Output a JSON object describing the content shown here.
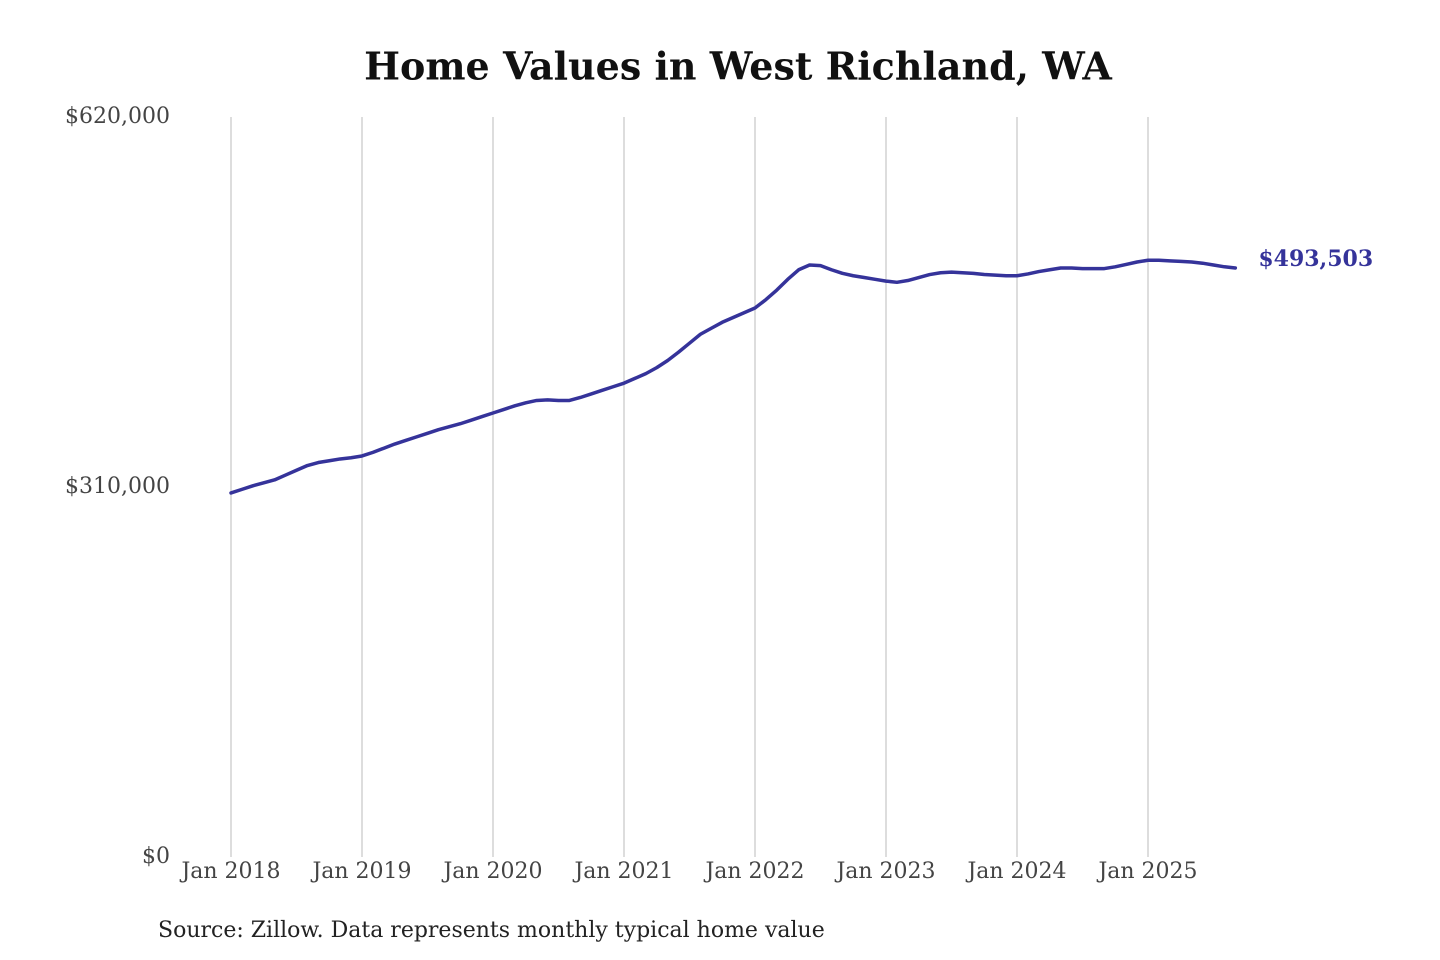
{
  "chart_data": {
    "type": "line",
    "title": "Home Values in West Richland, WA",
    "source": "Source: Zillow. Data represents monthly typical home value",
    "x": [
      "2018-01",
      "2018-02",
      "2018-03",
      "2018-04",
      "2018-05",
      "2018-06",
      "2018-07",
      "2018-08",
      "2018-09",
      "2018-10",
      "2018-11",
      "2018-12",
      "2019-01",
      "2019-02",
      "2019-03",
      "2019-04",
      "2019-05",
      "2019-06",
      "2019-07",
      "2019-08",
      "2019-09",
      "2019-10",
      "2019-11",
      "2019-12",
      "2020-01",
      "2020-02",
      "2020-03",
      "2020-04",
      "2020-05",
      "2020-06",
      "2020-07",
      "2020-08",
      "2020-09",
      "2020-10",
      "2020-11",
      "2020-12",
      "2021-01",
      "2021-02",
      "2021-03",
      "2021-04",
      "2021-05",
      "2021-06",
      "2021-07",
      "2021-08",
      "2021-09",
      "2021-10",
      "2021-11",
      "2021-12",
      "2022-01",
      "2022-02",
      "2022-03",
      "2022-04",
      "2022-05",
      "2022-06",
      "2022-07",
      "2022-08",
      "2022-09",
      "2022-10",
      "2022-11",
      "2022-12",
      "2023-01",
      "2023-02",
      "2023-03",
      "2023-04",
      "2023-05",
      "2023-06",
      "2023-07",
      "2023-08",
      "2023-09",
      "2023-10",
      "2023-11",
      "2023-12",
      "2024-01",
      "2024-02",
      "2024-03",
      "2024-04",
      "2024-05",
      "2024-06",
      "2024-07",
      "2024-08",
      "2024-09",
      "2024-10",
      "2024-11",
      "2024-12",
      "2025-01",
      "2025-02",
      "2025-03",
      "2025-04",
      "2025-05",
      "2025-06",
      "2025-07",
      "2025-08",
      "2025-09"
    ],
    "values": [
      305000,
      308000,
      311000,
      313500,
      316000,
      320000,
      324000,
      328000,
      330500,
      332000,
      333500,
      334500,
      336000,
      339000,
      342500,
      346000,
      349000,
      352000,
      355000,
      358000,
      360500,
      363000,
      366000,
      369000,
      372000,
      375000,
      378000,
      380500,
      382500,
      383000,
      382500,
      382500,
      385000,
      388000,
      391000,
      394000,
      397000,
      401000,
      405000,
      410000,
      416000,
      423000,
      430500,
      438000,
      443000,
      448000,
      452000,
      456000,
      460000,
      467000,
      475000,
      484000,
      492000,
      496000,
      495500,
      492000,
      489000,
      487000,
      485500,
      484000,
      482500,
      481500,
      483000,
      485500,
      488000,
      489500,
      490000,
      489500,
      489000,
      488000,
      487500,
      487000,
      487000,
      488500,
      490500,
      492000,
      493500,
      493500,
      493000,
      493000,
      493000,
      494500,
      496500,
      498500,
      500000,
      500000,
      499500,
      499000,
      498500,
      497500,
      496000,
      494500,
      493503
    ],
    "value_labels": [
      null,
      null,
      null,
      null,
      null,
      null,
      null,
      null,
      null,
      null,
      null,
      null,
      null,
      null,
      null,
      null,
      null,
      null,
      null,
      null,
      null,
      null,
      null,
      null,
      null,
      null,
      null,
      null,
      null,
      null,
      null,
      null,
      null,
      null,
      null,
      null,
      null,
      null,
      null,
      null,
      null,
      null,
      null,
      null,
      null,
      null,
      null,
      null,
      null,
      null,
      null,
      null,
      null,
      null,
      null,
      null,
      null,
      null,
      null,
      null,
      null,
      null,
      null,
      null,
      null,
      null,
      null,
      null,
      null,
      null,
      null,
      null,
      null,
      null,
      null,
      null,
      null,
      null,
      null,
      null,
      null,
      null,
      null,
      null,
      null,
      null,
      null,
      null,
      null,
      null,
      null,
      null,
      "$493,503"
    ],
    "color": "#35339a",
    "ylim": [
      0,
      620000
    ],
    "yticks": [
      {
        "value": 0,
        "label": "$0"
      },
      {
        "value": 310000,
        "label": "$310,000"
      },
      {
        "value": 620000,
        "label": "$620,000"
      }
    ],
    "xticks": [
      {
        "value": "2018-01",
        "label": "Jan 2018"
      },
      {
        "value": "2019-01",
        "label": "Jan 2019"
      },
      {
        "value": "2020-01",
        "label": "Jan 2020"
      },
      {
        "value": "2021-01",
        "label": "Jan 2021"
      },
      {
        "value": "2022-01",
        "label": "Jan 2022"
      },
      {
        "value": "2023-01",
        "label": "Jan 2023"
      },
      {
        "value": "2024-01",
        "label": "Jan 2024"
      },
      {
        "value": "2025-01",
        "label": "Jan 2025"
      }
    ],
    "xgrid": true
  }
}
